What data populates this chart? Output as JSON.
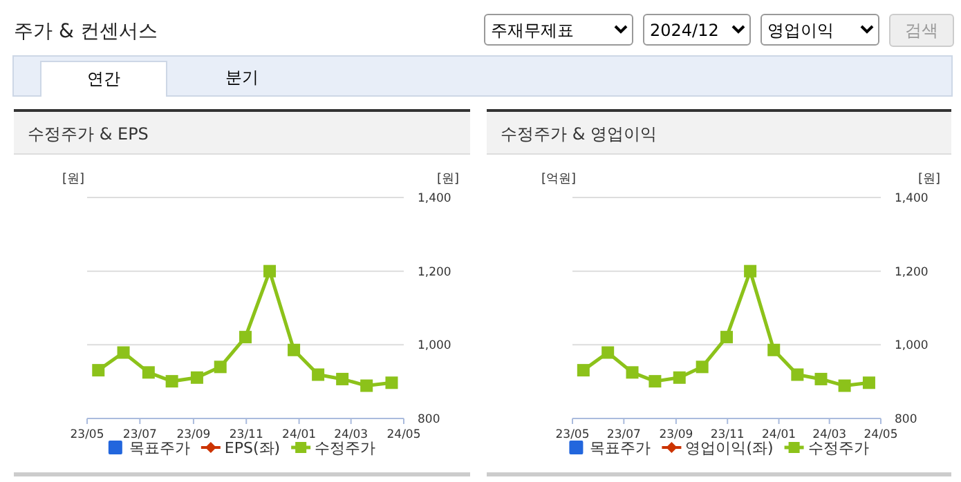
{
  "chart_data": [
    {
      "type": "other",
      "title": "주가 & 컨센서스",
      "annotations": [
        "주재무제표",
        "2024/12",
        "영업이익",
        "검색",
        "연간",
        "분기"
      ]
    },
    {
      "type": "line",
      "title": "수정주가 & EPS",
      "ylabel": "[원]",
      "y2label": "[원]",
      "x": [
        "2023-05-14",
        "2023-06-12",
        "2023-07-11",
        "2023-08-07",
        "2023-09-05",
        "2023-10-02",
        "2023-10-31",
        "2023-11-28",
        "2023-12-26",
        "2024-01-23",
        "2024-02-20",
        "2024-03-19",
        "2024-04-17"
      ],
      "xlim": [
        "2023-05-01",
        "2024-05-01"
      ],
      "xticks": [
        {
          "value": "2023-05-01",
          "label": "23/05"
        },
        {
          "value": "2023-07-01",
          "label": "23/07"
        },
        {
          "value": "2023-09-01",
          "label": "23/09"
        },
        {
          "value": "2023-11-01",
          "label": "23/11"
        },
        {
          "value": "2024-01-01",
          "label": "24/01"
        },
        {
          "value": "2024-03-01",
          "label": "24/03"
        },
        {
          "value": "2024-05-01",
          "label": "24/05"
        }
      ],
      "y2lim": [
        800,
        1400
      ],
      "y2ticks": [
        800,
        {
          "value": 1000,
          "label": "1,000"
        },
        {
          "value": 1200,
          "label": "1,200"
        },
        {
          "value": 1400,
          "label": "1,400"
        }
      ],
      "grid": "y",
      "legend": "bottom",
      "marker": "square",
      "line_style": "solid",
      "series": [
        {
          "name": "목표주가",
          "color": "#2266dd",
          "values": [
            null,
            null,
            null,
            null,
            null,
            null,
            null,
            null,
            null,
            null,
            null,
            null,
            null
          ]
        },
        {
          "name": "EPS(좌)",
          "color": "#cc3300",
          "values": [
            null,
            null,
            null,
            null,
            null,
            null,
            null,
            null,
            null,
            null,
            null,
            null,
            null
          ]
        },
        {
          "name": "수정주가",
          "color": "#8cc21a",
          "axis": "y2",
          "values": [
            931,
            979,
            925,
            901,
            911,
            940,
            1021,
            1200,
            986,
            919,
            907,
            889,
            897
          ]
        }
      ]
    },
    {
      "type": "line",
      "title": "수정주가 & 영업이익",
      "ylabel": "[억원]",
      "y2label": "[원]",
      "x": [
        "2023-05-14",
        "2023-06-12",
        "2023-07-11",
        "2023-08-07",
        "2023-09-05",
        "2023-10-02",
        "2023-10-31",
        "2023-11-28",
        "2023-12-26",
        "2024-01-23",
        "2024-02-20",
        "2024-03-19",
        "2024-04-17"
      ],
      "xlim": [
        "2023-05-01",
        "2024-05-01"
      ],
      "xticks": [
        {
          "value": "2023-05-01",
          "label": "23/05"
        },
        {
          "value": "2023-07-01",
          "label": "23/07"
        },
        {
          "value": "2023-09-01",
          "label": "23/09"
        },
        {
          "value": "2023-11-01",
          "label": "23/11"
        },
        {
          "value": "2024-01-01",
          "label": "24/01"
        },
        {
          "value": "2024-03-01",
          "label": "24/03"
        },
        {
          "value": "2024-05-01",
          "label": "24/05"
        }
      ],
      "y2lim": [
        800,
        1400
      ],
      "y2ticks": [
        800,
        {
          "value": 1000,
          "label": "1,000"
        },
        {
          "value": 1200,
          "label": "1,200"
        },
        {
          "value": 1400,
          "label": "1,400"
        }
      ],
      "grid": "y",
      "legend": "bottom",
      "marker": "square",
      "line_style": "solid",
      "series": [
        {
          "name": "목표주가",
          "color": "#2266dd",
          "values": [
            null,
            null,
            null,
            null,
            null,
            null,
            null,
            null,
            null,
            null,
            null,
            null,
            null
          ]
        },
        {
          "name": "영업이익(좌)",
          "color": "#cc3300",
          "values": [
            null,
            null,
            null,
            null,
            null,
            null,
            null,
            null,
            null,
            null,
            null,
            null,
            null
          ]
        },
        {
          "name": "수정주가",
          "color": "#8cc21a",
          "axis": "y2",
          "values": [
            931,
            979,
            925,
            901,
            911,
            940,
            1021,
            1200,
            986,
            919,
            907,
            889,
            897
          ]
        }
      ]
    }
  ]
}
